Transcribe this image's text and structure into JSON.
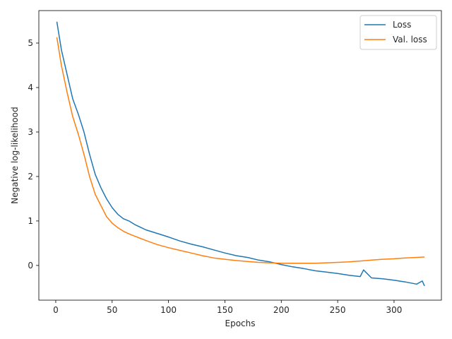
{
  "chart_data": {
    "type": "line",
    "title": "",
    "xlabel": "Epochs",
    "ylabel": "Negative log-likelihood",
    "xlim": [
      -15,
      342
    ],
    "ylim": [
      -0.78,
      5.73
    ],
    "xticks": [
      0,
      50,
      100,
      150,
      200,
      250,
      300
    ],
    "yticks": [
      0,
      1,
      2,
      3,
      4,
      5
    ],
    "grid": false,
    "legend_position": "top-right",
    "series": [
      {
        "name": "Loss",
        "color": "#1f77b4",
        "x": [
          1,
          5,
          10,
          15,
          20,
          25,
          30,
          35,
          40,
          45,
          50,
          55,
          60,
          65,
          70,
          75,
          80,
          85,
          90,
          95,
          100,
          110,
          120,
          130,
          140,
          150,
          160,
          170,
          180,
          190,
          200,
          210,
          220,
          230,
          240,
          250,
          260,
          270,
          273,
          280,
          290,
          300,
          310,
          320,
          325,
          327
        ],
        "y": [
          5.48,
          4.85,
          4.3,
          3.75,
          3.4,
          3.0,
          2.5,
          2.05,
          1.75,
          1.5,
          1.3,
          1.15,
          1.05,
          1.0,
          0.92,
          0.86,
          0.8,
          0.76,
          0.72,
          0.68,
          0.64,
          0.55,
          0.48,
          0.42,
          0.35,
          0.28,
          0.22,
          0.18,
          0.12,
          0.08,
          0.02,
          -0.03,
          -0.07,
          -0.12,
          -0.15,
          -0.18,
          -0.22,
          -0.25,
          -0.1,
          -0.28,
          -0.3,
          -0.33,
          -0.37,
          -0.42,
          -0.35,
          -0.46
        ]
      },
      {
        "name": "Val. loss",
        "color": "#ff7f0e",
        "x": [
          1,
          5,
          10,
          15,
          20,
          25,
          30,
          35,
          40,
          45,
          50,
          55,
          60,
          65,
          70,
          75,
          80,
          90,
          100,
          110,
          120,
          130,
          140,
          150,
          160,
          170,
          180,
          190,
          200,
          210,
          220,
          230,
          240,
          250,
          260,
          270,
          280,
          290,
          300,
          310,
          320,
          327
        ],
        "y": [
          5.13,
          4.5,
          3.9,
          3.35,
          2.95,
          2.5,
          2.0,
          1.6,
          1.35,
          1.1,
          0.95,
          0.85,
          0.77,
          0.71,
          0.66,
          0.61,
          0.56,
          0.47,
          0.4,
          0.34,
          0.28,
          0.22,
          0.17,
          0.14,
          0.11,
          0.09,
          0.07,
          0.06,
          0.05,
          0.05,
          0.05,
          0.05,
          0.06,
          0.07,
          0.08,
          0.1,
          0.12,
          0.14,
          0.15,
          0.17,
          0.18,
          0.19
        ]
      }
    ]
  }
}
